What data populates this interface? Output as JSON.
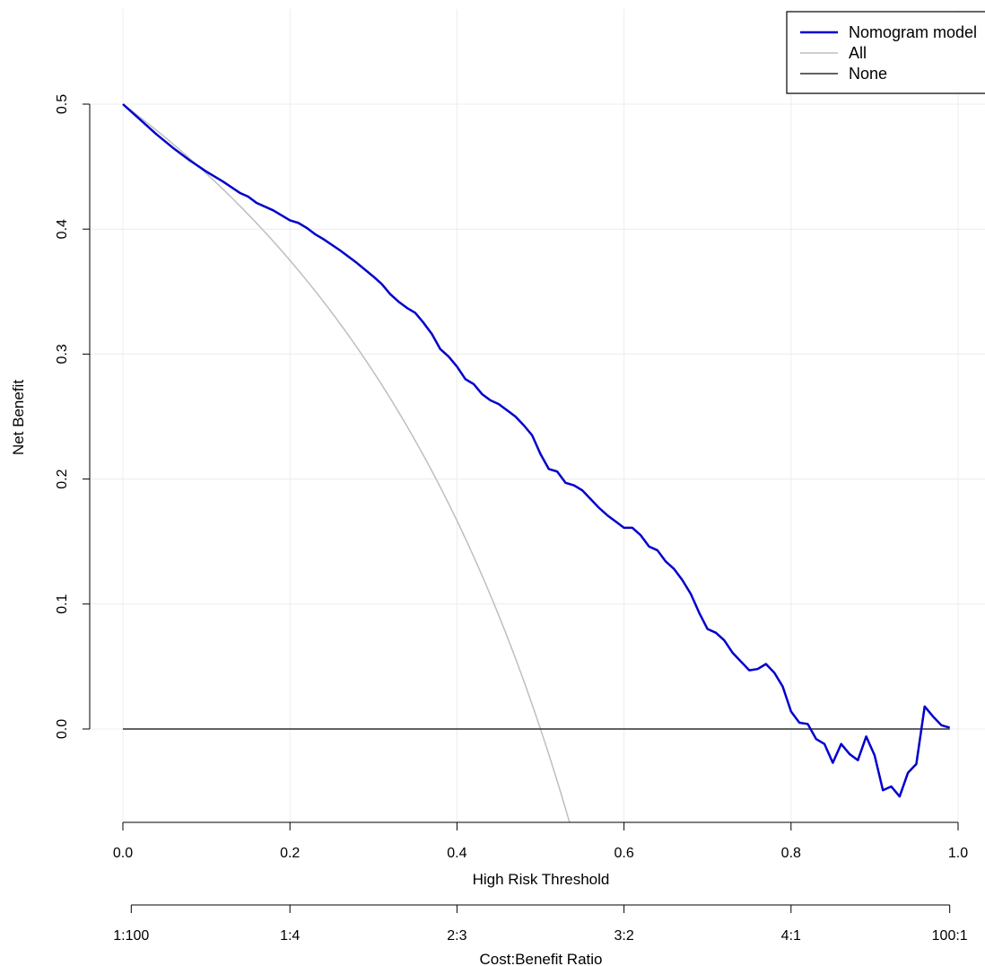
{
  "chart_data": {
    "type": "line",
    "title": "",
    "xlabel": "High Risk Threshold",
    "ylabel": "Net Benefit",
    "xlim": [
      0,
      1
    ],
    "ylim": [
      -0.073,
      0.5
    ],
    "grid": true,
    "legend_placement": "top-right",
    "x_ticks": [
      "0.0",
      "0.2",
      "0.4",
      "0.6",
      "0.8",
      "1.0"
    ],
    "x_tick_values": [
      0,
      0.2,
      0.4,
      0.6,
      0.8,
      1.0
    ],
    "y_ticks": [
      "0.0",
      "0.1",
      "0.2",
      "0.3",
      "0.4",
      "0.5"
    ],
    "y_tick_values": [
      0,
      0.1,
      0.2,
      0.3,
      0.4,
      0.5
    ],
    "secondary_axis": {
      "label": "Cost:Benefit Ratio",
      "ticks": [
        "1:100",
        "1:4",
        "2:3",
        "3:2",
        "4:1",
        "100:1"
      ],
      "tick_values": [
        0.01,
        0.2,
        0.4,
        0.6,
        0.8,
        0.99
      ]
    },
    "series": [
      {
        "name": "Nomogram model",
        "color": "#0000cd",
        "x": [
          0.0,
          0.02,
          0.04,
          0.06,
          0.08,
          0.1,
          0.12,
          0.14,
          0.15,
          0.16,
          0.18,
          0.2,
          0.21,
          0.22,
          0.23,
          0.24,
          0.26,
          0.28,
          0.3,
          0.31,
          0.32,
          0.33,
          0.34,
          0.35,
          0.36,
          0.37,
          0.38,
          0.39,
          0.4,
          0.41,
          0.42,
          0.43,
          0.44,
          0.45,
          0.46,
          0.47,
          0.48,
          0.49,
          0.5,
          0.51,
          0.52,
          0.53,
          0.54,
          0.55,
          0.56,
          0.57,
          0.58,
          0.59,
          0.6,
          0.61,
          0.62,
          0.63,
          0.64,
          0.65,
          0.66,
          0.67,
          0.68,
          0.69,
          0.7,
          0.71,
          0.72,
          0.73,
          0.74,
          0.75,
          0.76,
          0.77,
          0.78,
          0.79,
          0.8,
          0.81,
          0.82,
          0.83,
          0.84,
          0.85,
          0.86,
          0.87,
          0.88,
          0.89,
          0.9,
          0.91,
          0.92,
          0.93,
          0.94,
          0.95,
          0.96,
          0.97,
          0.98,
          0.99
        ],
        "y": [
          0.5,
          0.488,
          0.476,
          0.465,
          0.455,
          0.446,
          0.438,
          0.429,
          0.426,
          0.421,
          0.415,
          0.407,
          0.405,
          0.401,
          0.396,
          0.392,
          0.383,
          0.373,
          0.362,
          0.356,
          0.348,
          0.342,
          0.337,
          0.333,
          0.325,
          0.316,
          0.304,
          0.298,
          0.29,
          0.28,
          0.276,
          0.268,
          0.263,
          0.26,
          0.255,
          0.25,
          0.243,
          0.235,
          0.22,
          0.208,
          0.206,
          0.197,
          0.195,
          0.191,
          0.184,
          0.177,
          0.171,
          0.166,
          0.161,
          0.161,
          0.155,
          0.146,
          0.143,
          0.134,
          0.128,
          0.119,
          0.108,
          0.093,
          0.08,
          0.077,
          0.071,
          0.061,
          0.054,
          0.047,
          0.048,
          0.052,
          0.045,
          0.034,
          0.014,
          0.005,
          0.004,
          -0.008,
          -0.012,
          -0.027,
          -0.012,
          -0.02,
          -0.025,
          -0.006,
          -0.021,
          -0.049,
          -0.046,
          -0.054,
          -0.035,
          -0.028,
          0.018,
          0.01,
          0.003,
          0.001
        ]
      },
      {
        "name": "All",
        "color": "#bebebe",
        "prevalence": 0.5,
        "x": [
          0.0,
          0.05,
          0.1,
          0.15,
          0.2,
          0.25,
          0.3,
          0.35,
          0.4,
          0.45,
          0.5,
          0.535
        ],
        "y": [
          0.5,
          0.4737,
          0.4444,
          0.4118,
          0.375,
          0.3333,
          0.2857,
          0.2308,
          0.1667,
          0.0909,
          0.0,
          -0.0753
        ]
      },
      {
        "name": "None",
        "color": "#4d4d4d",
        "x": [
          0.0,
          0.99
        ],
        "y": [
          0.0,
          0.0
        ]
      }
    ]
  }
}
